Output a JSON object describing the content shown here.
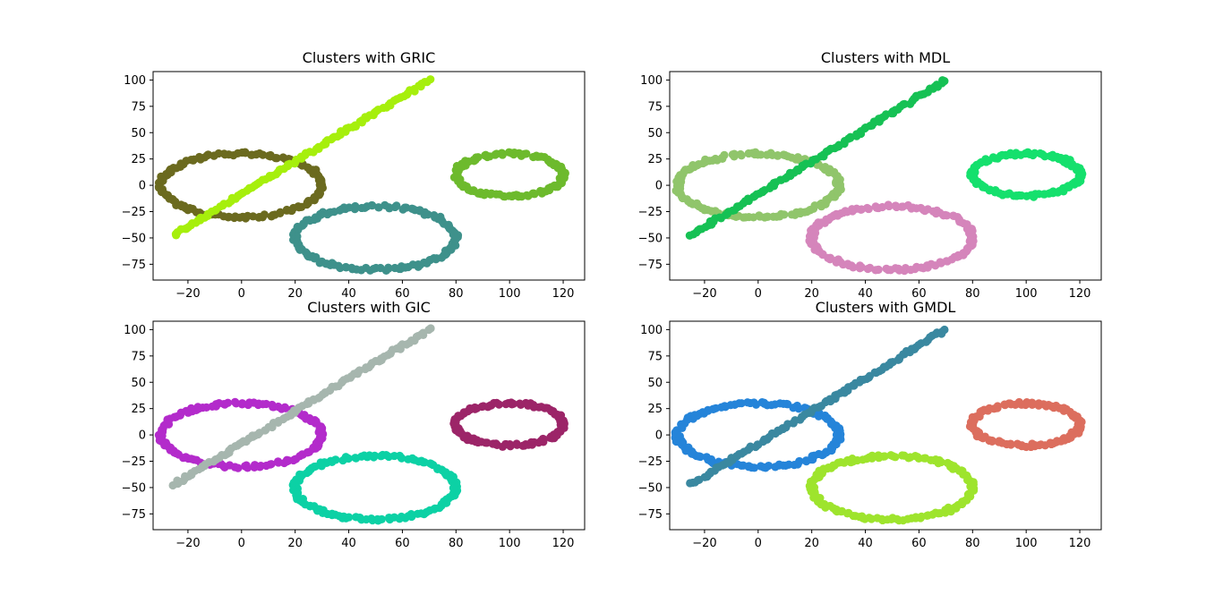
{
  "chart_data": [
    {
      "type": "scatter",
      "title": "Clusters with GRIC",
      "xlim": [
        -33,
        128
      ],
      "ylim": [
        -90,
        108
      ],
      "xticks": [
        -20,
        0,
        20,
        40,
        60,
        80,
        100,
        120
      ],
      "yticks": [
        -75,
        -50,
        -25,
        0,
        25,
        50,
        75,
        100
      ],
      "series": [
        {
          "shape": "ellipse",
          "cx": 0,
          "cy": 0,
          "rx": 30,
          "ry": 30,
          "color": "#6b6a1f"
        },
        {
          "shape": "line",
          "x0": -25,
          "y0": -47,
          "x1": 70,
          "y1": 100,
          "color": "#a6ef0c"
        },
        {
          "shape": "ellipse",
          "cx": 50,
          "cy": -50,
          "rx": 30,
          "ry": 30,
          "color": "#3e918b"
        },
        {
          "shape": "ellipse",
          "cx": 100,
          "cy": 10,
          "rx": 20,
          "ry": 20,
          "color": "#6dba2d"
        }
      ]
    },
    {
      "type": "scatter",
      "title": "Clusters with MDL",
      "xlim": [
        -33,
        128
      ],
      "ylim": [
        -90,
        108
      ],
      "xticks": [
        -20,
        0,
        20,
        40,
        60,
        80,
        100,
        120
      ],
      "yticks": [
        -75,
        -50,
        -25,
        0,
        25,
        50,
        75,
        100
      ],
      "series": [
        {
          "shape": "ellipse",
          "cx": 0,
          "cy": 0,
          "rx": 30,
          "ry": 30,
          "color": "#90c56b"
        },
        {
          "shape": "line",
          "x0": -25,
          "y0": -47,
          "x1": 70,
          "y1": 100,
          "color": "#16c154"
        },
        {
          "shape": "ellipse",
          "cx": 50,
          "cy": -50,
          "rx": 30,
          "ry": 30,
          "color": "#d585bb"
        },
        {
          "shape": "ellipse",
          "cx": 100,
          "cy": 10,
          "rx": 20,
          "ry": 20,
          "color": "#15e06d"
        }
      ]
    },
    {
      "type": "scatter",
      "title": "Clusters with GIC",
      "xlim": [
        -33,
        128
      ],
      "ylim": [
        -90,
        108
      ],
      "xticks": [
        -20,
        0,
        20,
        40,
        60,
        80,
        100,
        120
      ],
      "yticks": [
        -75,
        -50,
        -25,
        0,
        25,
        50,
        75,
        100
      ],
      "series": [
        {
          "shape": "ellipse",
          "cx": 0,
          "cy": 0,
          "rx": 30,
          "ry": 30,
          "color": "#b32bcb"
        },
        {
          "shape": "line",
          "x0": -25,
          "y0": -47,
          "x1": 70,
          "y1": 100,
          "color": "#a6b6ae"
        },
        {
          "shape": "ellipse",
          "cx": 50,
          "cy": -50,
          "rx": 30,
          "ry": 30,
          "color": "#0cd1a5"
        },
        {
          "shape": "ellipse",
          "cx": 100,
          "cy": 10,
          "rx": 20,
          "ry": 20,
          "color": "#9c2568"
        }
      ]
    },
    {
      "type": "scatter",
      "title": "Clusters with GMDL",
      "xlim": [
        -33,
        128
      ],
      "ylim": [
        -90,
        108
      ],
      "xticks": [
        -20,
        0,
        20,
        40,
        60,
        80,
        100,
        120
      ],
      "yticks": [
        -75,
        -50,
        -25,
        0,
        25,
        50,
        75,
        100
      ],
      "series": [
        {
          "shape": "ellipse",
          "cx": 0,
          "cy": 0,
          "rx": 30,
          "ry": 30,
          "color": "#2584d9"
        },
        {
          "shape": "line",
          "x0": -25,
          "y0": -47,
          "x1": 70,
          "y1": 100,
          "color": "#3a88a0"
        },
        {
          "shape": "ellipse",
          "cx": 50,
          "cy": -50,
          "rx": 30,
          "ry": 30,
          "color": "#9ee42d"
        },
        {
          "shape": "ellipse",
          "cx": 100,
          "cy": 10,
          "rx": 20,
          "ry": 20,
          "color": "#dc6e5e"
        }
      ]
    }
  ]
}
